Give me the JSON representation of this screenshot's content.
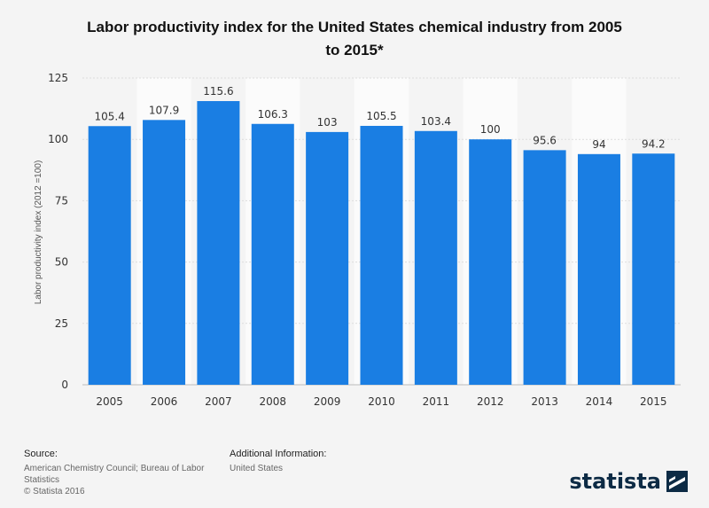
{
  "chart_data": {
    "type": "bar",
    "title": "Labor productivity index for the United States chemical industry from 2005 to 2015*",
    "title_line1": "Labor productivity index for the United States chemical industry from 2005",
    "title_line2": "to 2015*",
    "categories": [
      "2005",
      "2006",
      "2007",
      "2008",
      "2009",
      "2010",
      "2011",
      "2012",
      "2013",
      "2014",
      "2015"
    ],
    "values": [
      105.4,
      107.9,
      115.6,
      106.3,
      103,
      105.5,
      103.4,
      100,
      95.6,
      94,
      94.2
    ],
    "value_labels": [
      "105.4",
      "107.9",
      "115.6",
      "106.3",
      "103",
      "105.5",
      "103.4",
      "100",
      "95.6",
      "94",
      "94.2"
    ],
    "xlabel": "",
    "ylabel": "Labor productivity index (2012 =100)",
    "ylim": [
      0,
      125
    ],
    "yticks": [
      "0",
      "25",
      "50",
      "75",
      "100",
      "125"
    ],
    "bar_color": "#1a7ee3",
    "grid": true
  },
  "footer": {
    "source_heading": "Source:",
    "source_line1": "American Chemistry Council; Bureau of Labor",
    "source_line2": "Statistics",
    "copyright": "© Statista 2016",
    "additional_heading": "Additional Information:",
    "additional_text": "United States"
  },
  "brand": {
    "name": "statista",
    "icon": "statista-logo-icon"
  }
}
